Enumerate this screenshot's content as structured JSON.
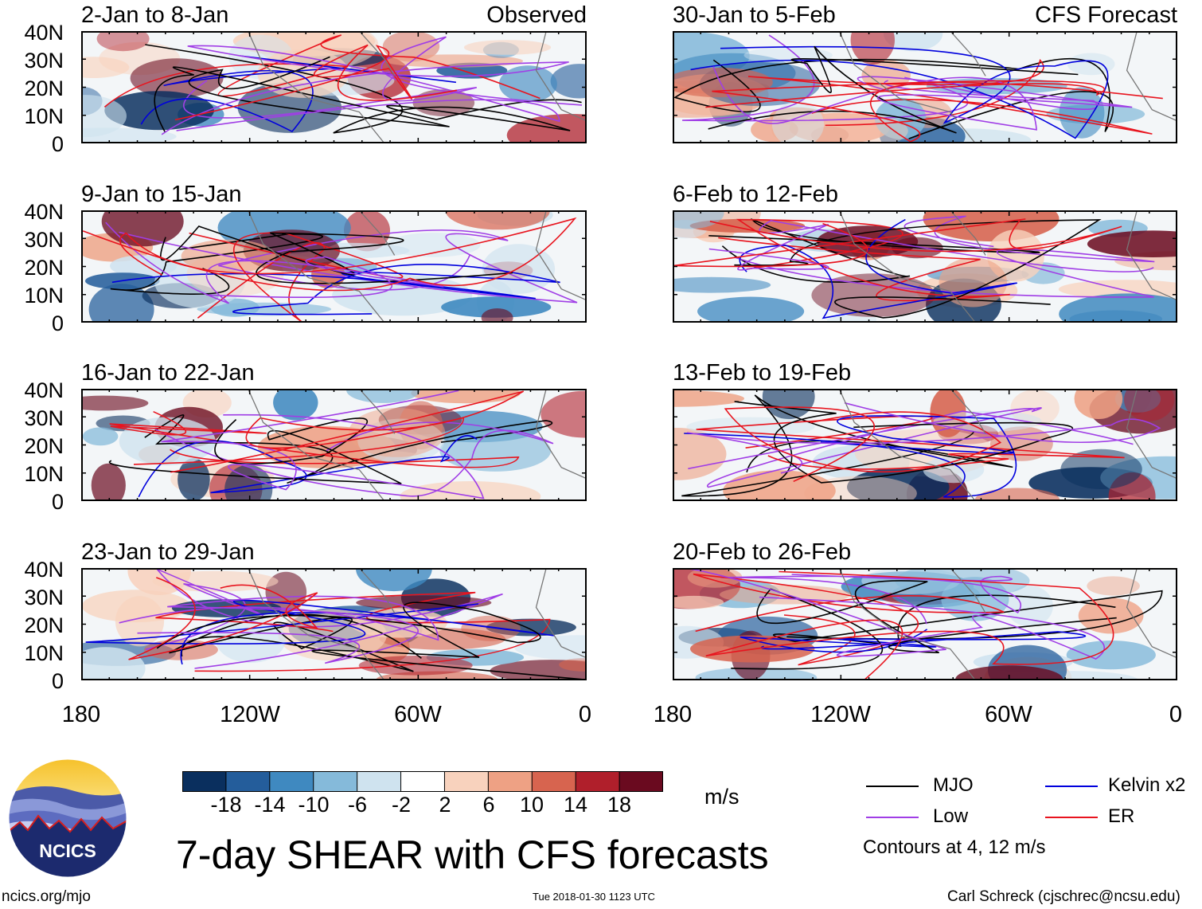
{
  "panels": [
    {
      "title": "2-Jan to 8-Jan",
      "tag": "Observed"
    },
    {
      "title": "9-Jan to 15-Jan",
      "tag": ""
    },
    {
      "title": "16-Jan to 22-Jan",
      "tag": ""
    },
    {
      "title": "23-Jan to 29-Jan",
      "tag": ""
    },
    {
      "title": "30-Jan to 5-Feb",
      "tag": "CFS Forecast"
    },
    {
      "title": "6-Feb to 12-Feb",
      "tag": ""
    },
    {
      "title": "13-Feb to 19-Feb",
      "tag": ""
    },
    {
      "title": "20-Feb to 26-Feb",
      "tag": ""
    }
  ],
  "lat_labels": [
    "40N",
    "30N",
    "20N",
    "10N",
    "0"
  ],
  "lon_labels": [
    "180",
    "120W",
    "60W",
    "0"
  ],
  "colorbar": {
    "ticks": [
      "-18",
      "-14",
      "-10",
      "-6",
      "-2",
      "2",
      "6",
      "10",
      "14",
      "18"
    ],
    "units": "m/s",
    "colors": [
      "#0a2f5e",
      "#245d9b",
      "#3f89c0",
      "#85bada",
      "#cfe3ef",
      "#ffffff",
      "#f8d2bd",
      "#eea184",
      "#d7644f",
      "#b01f2b",
      "#6a0a1f"
    ]
  },
  "legend": {
    "items": [
      {
        "label": "MJO",
        "color": "#000000"
      },
      {
        "label": "Kelvin x2",
        "color": "#0000dd"
      },
      {
        "label": "Low",
        "color": "#a03ee6"
      },
      {
        "label": "ER",
        "color": "#e8141e"
      }
    ],
    "note": "Contours at 4, 12 m/s"
  },
  "main_title": "7-day SHEAR with CFS forecasts",
  "logo_text": "NCICS",
  "footer": {
    "left": "ncics.org/mjo",
    "center": "Tue 2018-01-30 1123 UTC",
    "right": "Carl Schreck (cjschrec@ncsu.edu)"
  }
}
